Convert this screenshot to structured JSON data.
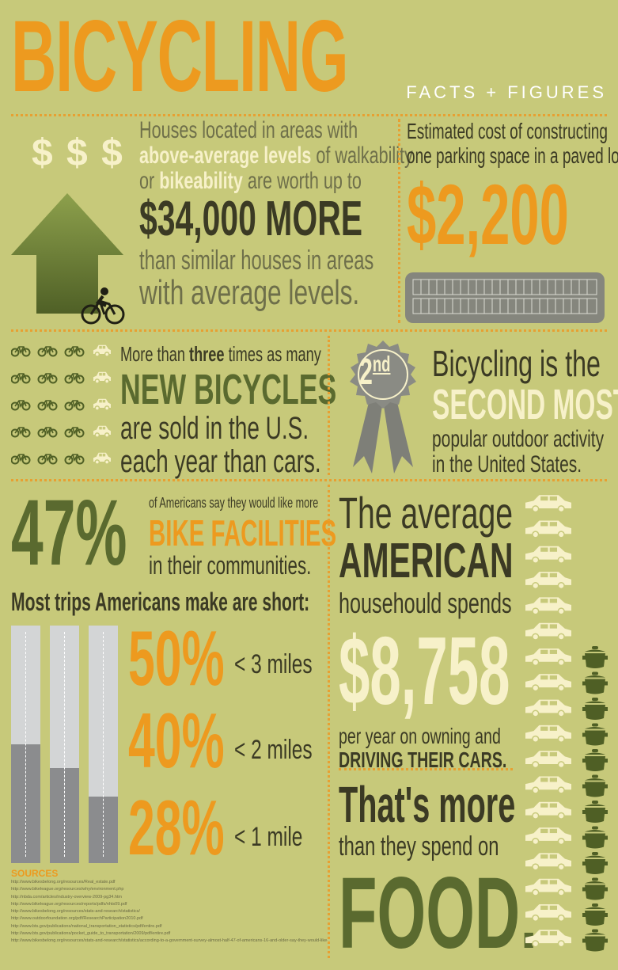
{
  "header": {
    "title": "BICYCLING",
    "subtitle": "FACTS + FIGURES"
  },
  "house": {
    "dollar_signs": "$ $ $",
    "line1": "Houses located in areas with",
    "line2_highlight": "above-average levels",
    "line2_rest": " of walkability",
    "line3_pre": "or ",
    "line3_highlight": "bikeability",
    "line3_rest": " are worth up to",
    "amount": "$34,000 MORE",
    "line5": "than similar houses in areas",
    "line6": "with average levels."
  },
  "parking": {
    "line1": "Estimated cost of constructing",
    "line2": "one parking space in a paved lot:",
    "amount": "$2,200"
  },
  "new_bicycles": {
    "line1_pre": "More than ",
    "line1_bold": "three",
    "line1_rest": " times as many",
    "headline": "NEW BICYCLES",
    "line3": "are sold in the U.S.",
    "line4": "each year than cars."
  },
  "second": {
    "ribbon_number": "2",
    "ribbon_suffix": "nd",
    "line1": "Bicycling is the",
    "headline": "SECOND MOST",
    "line3": "popular outdoor activity",
    "line4": "in the United States."
  },
  "facilities": {
    "percent": "47%",
    "line1": "of Americans say they would like more",
    "headline": "BIKE FACILITIES",
    "line3": "in their communities."
  },
  "trips": {
    "heading": "Most trips Americans make are short:",
    "items": [
      {
        "percent": "50%",
        "label": "< 3 miles",
        "fill": 0.5
      },
      {
        "percent": "40%",
        "label": "< 2 miles",
        "fill": 0.4
      },
      {
        "percent": "28%",
        "label": "< 1 mile",
        "fill": 0.28
      }
    ]
  },
  "household": {
    "line1": "The average",
    "line2": "AMERICAN",
    "line3": "househould spends",
    "amount": "$8,758",
    "line5": "per year on owning and",
    "line6": "DRIVING THEIR CARS.",
    "line7": "That's more",
    "line8": "than they spend on",
    "headline": "FOOD."
  },
  "sources": {
    "heading": "SOURCES",
    "items": [
      "http://www.bikesbelong.org/resources/Real_estate.pdf",
      "http://www.bikeleague.org/resources/why/environment.php",
      "http://nbda.com/articles/industry-overview-2009-pg34.htm",
      "http://www.bikeleague.org/resources/reports/pdfs/nhts09.pdf",
      "http://www.bikesbelong.org/resources/stats-and-research/statistics/",
      "http://www.outdoorfoundation.org/pdf/ResearchParticipation2010.pdf",
      "http://www.bts.gov/publications/national_transportation_statistics/pdf/entire.pdf",
      "http://www.bts.gov/publications/pocket_guide_to_transportation/2009/pdf/entire.pdf",
      "http://www.bikesbelong.org/resources/stats-and-research/statistics/according-to-a-government-survey-almost-half-47-of-americans-16-and-older-say-they-would-like-to"
    ]
  },
  "colors": {
    "background": "#c7c97a",
    "orange": "#ed9a1f",
    "olive": "#5a6a2f",
    "dark": "#3b3a24",
    "cream": "#f7f1c9",
    "road_gray": "#8b8c8e"
  }
}
